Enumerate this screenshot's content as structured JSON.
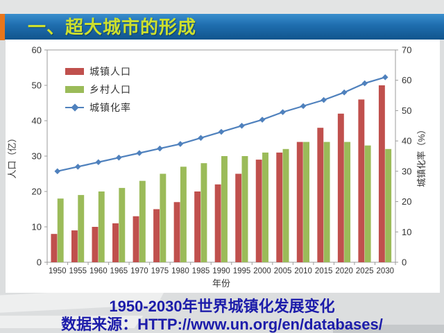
{
  "slide": {
    "title": "一、超大城市的形成",
    "caption_line1": "1950-2030年世界城镇化发展变化",
    "caption_line2": "数据来源：HTTP://www.un.org/en/databases/"
  },
  "colors": {
    "title_bar_blue": "#1e6dae",
    "title_text": "#cde02e",
    "accent_stripe": "#e8761c",
    "urban_bar": "#c0504d",
    "rural_bar": "#9bbb59",
    "rate_line": "#4f81bd",
    "caption_text": "#1c1caa",
    "axis_text": "#333333",
    "axis_line": "#9b9b9b"
  },
  "chart_data": {
    "type": "bar+line",
    "title": "",
    "categories": [
      "1950",
      "1955",
      "1960",
      "1965",
      "1970",
      "1975",
      "1980",
      "1985",
      "1990",
      "1995",
      "2000",
      "2005",
      "2010",
      "2015",
      "2020",
      "2025",
      "2030"
    ],
    "series": [
      {
        "id": "urban",
        "name": "城镇人口",
        "type": "bar",
        "axis": "left",
        "color": "#c0504d",
        "values": [
          8,
          9,
          10,
          11,
          13,
          15,
          17,
          20,
          22,
          25,
          29,
          31,
          34,
          38,
          42,
          46,
          50
        ]
      },
      {
        "id": "rural",
        "name": "乡村人口",
        "type": "bar",
        "axis": "left",
        "color": "#9bbb59",
        "values": [
          18,
          19,
          20,
          21,
          23,
          25,
          27,
          28,
          30,
          30,
          31,
          32,
          34,
          34,
          34,
          33,
          32
        ]
      },
      {
        "id": "rate",
        "name": "城镇化率",
        "type": "line",
        "axis": "right",
        "color": "#4f81bd",
        "marker": "diamond",
        "values": [
          30,
          31.5,
          33,
          34.5,
          36,
          37.5,
          39,
          41,
          43,
          45,
          47,
          49.5,
          51.5,
          53.5,
          56,
          59,
          61
        ]
      }
    ],
    "xlabel": "年份",
    "ylabel_left": "人口（亿）",
    "ylabel_right": "城镇化率（%）",
    "ylim_left": [
      0,
      60
    ],
    "ylim_right": [
      0,
      70
    ],
    "ytick_step": 10,
    "grid": false,
    "legend_position": "top-left"
  }
}
